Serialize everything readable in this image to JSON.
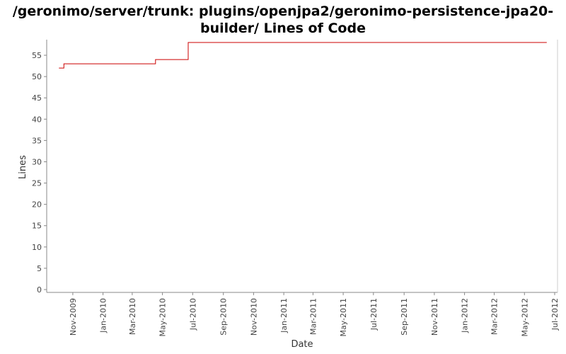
{
  "chart_data": {
    "type": "line",
    "title_lines": [
      "/geronimo/server/trunk: plugins/openjpa2/geronimo-persistence-jpa20-",
      "builder/ Lines of Code"
    ],
    "xlabel": "Date",
    "ylabel": "Lines",
    "ylim": [
      0,
      58
    ],
    "yticks": [
      0,
      5,
      10,
      15,
      20,
      25,
      30,
      35,
      40,
      45,
      50,
      55
    ],
    "xlim": [
      "2009-09-15",
      "2012-07-01"
    ],
    "xticks": [
      {
        "date": "2009-11-01",
        "label": "Nov-2009"
      },
      {
        "date": "2010-01-01",
        "label": "Jan-2010"
      },
      {
        "date": "2010-03-01",
        "label": "Mar-2010"
      },
      {
        "date": "2010-05-01",
        "label": "May-2010"
      },
      {
        "date": "2010-07-01",
        "label": "Jul-2010"
      },
      {
        "date": "2010-09-01",
        "label": "Sep-2010"
      },
      {
        "date": "2010-11-01",
        "label": "Nov-2010"
      },
      {
        "date": "2011-01-01",
        "label": "Jan-2011"
      },
      {
        "date": "2011-03-01",
        "label": "Mar-2011"
      },
      {
        "date": "2011-05-01",
        "label": "May-2011"
      },
      {
        "date": "2011-07-01",
        "label": "Jul-2011"
      },
      {
        "date": "2011-09-01",
        "label": "Sep-2011"
      },
      {
        "date": "2011-11-01",
        "label": "Nov-2011"
      },
      {
        "date": "2012-01-01",
        "label": "Jan-2012"
      },
      {
        "date": "2012-03-01",
        "label": "Mar-2012"
      },
      {
        "date": "2012-05-01",
        "label": "May-2012"
      },
      {
        "date": "2012-07-01",
        "label": "Jul-2012"
      }
    ],
    "series": [
      {
        "color": "#cc0000",
        "step": true,
        "points": [
          {
            "x": "2009-10-04",
            "y": 52
          },
          {
            "x": "2009-10-14",
            "y": 53
          },
          {
            "x": "2010-04-17",
            "y": 54
          },
          {
            "x": "2010-06-22",
            "y": 58
          },
          {
            "x": "2012-06-15",
            "y": 58
          }
        ]
      }
    ],
    "grid": false
  }
}
